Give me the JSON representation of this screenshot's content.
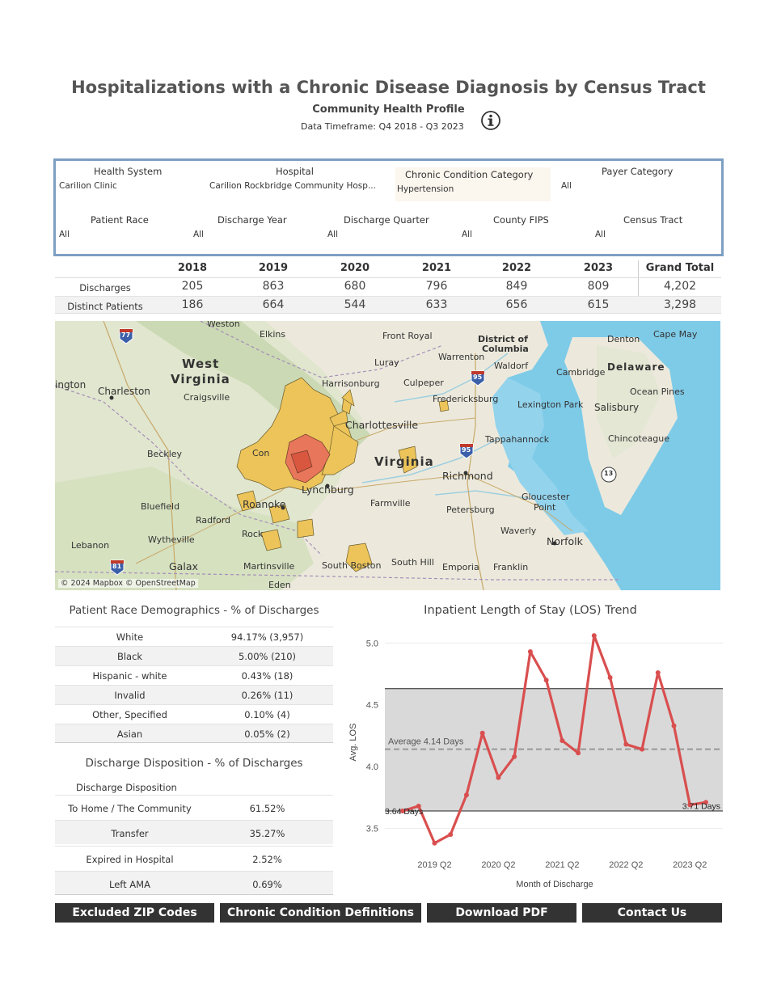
{
  "title": "Hospitalizations with a Chronic Disease Diagnosis by Census Tract",
  "subtitle": "Community Health Profile",
  "timeframe": "Data Timeframe: Q4 2018 - Q3 2023",
  "info_icon": "info-icon",
  "filters": {
    "health_system": {
      "label": "Health System",
      "value": "Carilion Clinic"
    },
    "hospital": {
      "label": "Hospital",
      "value": "Carilion Rockbridge Community Hosp..."
    },
    "chronic": {
      "label": "Chronic Condition Category",
      "value": "Hypertension"
    },
    "payer": {
      "label": "Payer Category",
      "value": "All"
    },
    "race": {
      "label": "Patient Race",
      "value": "All"
    },
    "year": {
      "label": "Discharge Year",
      "value": "All"
    },
    "quarter": {
      "label": "Discharge Quarter",
      "value": "All"
    },
    "county": {
      "label": "County FIPS",
      "value": "All"
    },
    "tract": {
      "label": "Census Tract",
      "value": "All"
    }
  },
  "summary": {
    "headers": [
      "2018",
      "2019",
      "2020",
      "2021",
      "2022",
      "2023",
      "Grand Total"
    ],
    "rows": [
      {
        "label": "Discharges",
        "values": [
          "205",
          "863",
          "680",
          "796",
          "849",
          "809",
          "4,202"
        ]
      },
      {
        "label": "Distinct Patients",
        "values": [
          "186",
          "664",
          "544",
          "633",
          "656",
          "615",
          "3,298"
        ]
      }
    ]
  },
  "map": {
    "attribution": "© 2024 Mapbox © OpenStreetMap",
    "labels": {
      "weston": "Weston",
      "elkins": "Elkins",
      "front_royal": "Front Royal",
      "dc": "District of",
      "dc2": "Columbia",
      "denton": "Denton",
      "cape_may": "Cape May",
      "west": "West",
      "virginia_wv": "Virginia",
      "warrenton": "Warrenton",
      "luray": "Luray",
      "waldorf": "Waldorf",
      "delaware": "Delaware",
      "cambridge": "Cambridge",
      "ington": "ington",
      "charleston": "Charleston",
      "harrisonburg": "Harrisonburg",
      "culpeper": "Culpeper",
      "ocean_pines": "Ocean Pines",
      "craigsville": "Craigsville",
      "fredericksburg": "Fredericksburg",
      "lexington_park": "Lexington Park",
      "salisbury": "Salisbury",
      "charlottesville": "Charlottesville",
      "tappahannock": "Tappahannock",
      "chincoteague": "Chincoteague",
      "beckley": "Beckley",
      "virginia": "Virginia",
      "richmond": "Richmond",
      "lynchburg": "Lynchburg",
      "bluefield": "Bluefield",
      "roanoke": "Roanoke",
      "farmville": "Farmville",
      "petersburg": "Petersburg",
      "gloucester": "Gloucester",
      "point": "Point",
      "radford": "Radford",
      "waverly": "Waverly",
      "norfolk": "Norfolk",
      "wytheville": "Wytheville",
      "lebanon": "Lebanon",
      "galax": "Galax",
      "martinsville": "Martinsville",
      "south_boston": "South Boston",
      "south_hill": "South Hill",
      "emporia": "Emporia",
      "franklin": "Franklin",
      "eden": "Eden",
      "rock": "Rock",
      "con": "Con",
      "shield_77": "77",
      "shield_95a": "95",
      "shield_95b": "95",
      "shield_13": "13",
      "shield_81": "81"
    }
  },
  "race": {
    "title": "Patient Race Demographics - % of Discharges",
    "rows": [
      {
        "name": "White",
        "value": "94.17% (3,957)"
      },
      {
        "name": "Black",
        "value": "5.00% (210)"
      },
      {
        "name": "Hispanic - white",
        "value": "0.43% (18)"
      },
      {
        "name": "Invalid",
        "value": "0.26% (11)"
      },
      {
        "name": "Other, Specified",
        "value": "0.10% (4)"
      },
      {
        "name": "Asian",
        "value": "0.05% (2)"
      }
    ]
  },
  "disposition": {
    "title": "Discharge Disposition - % of Discharges",
    "column_header": "Discharge Disposition",
    "rows": [
      {
        "name": "To Home / The Community",
        "value": "61.52%"
      },
      {
        "name": "Transfer",
        "value": "35.27%"
      },
      {
        "name": "Expired in Hospital",
        "value": "2.52%"
      },
      {
        "name": "Left AMA",
        "value": "0.69%"
      }
    ]
  },
  "chart_data": {
    "type": "line",
    "title": "Inpatient Length of Stay (LOS) Trend",
    "xlabel": "Month of Discharge",
    "ylabel": "Avg. LOS",
    "ylim": [
      3.3,
      5.1
    ],
    "yticks": [
      "3.5",
      "4.0",
      "4.5",
      "5.0"
    ],
    "xtick_labels": [
      "2019 Q2",
      "2020 Q2",
      "2021 Q2",
      "2022 Q2",
      "2023 Q2"
    ],
    "x": [
      "2018 Q4",
      "2019 Q1",
      "2019 Q2",
      "2019 Q3",
      "2019 Q4",
      "2020 Q1",
      "2020 Q2",
      "2020 Q3",
      "2020 Q4",
      "2021 Q1",
      "2021 Q2",
      "2021 Q3",
      "2021 Q4",
      "2022 Q1",
      "2022 Q2",
      "2022 Q3",
      "2022 Q4",
      "2023 Q1",
      "2023 Q2",
      "2023 Q3"
    ],
    "series": [
      {
        "name": "Avg. LOS",
        "values": [
          3.64,
          3.68,
          3.38,
          3.45,
          3.77,
          4.27,
          3.91,
          4.08,
          4.93,
          4.7,
          4.21,
          4.11,
          5.06,
          4.72,
          4.18,
          4.14,
          4.76,
          4.33,
          3.69,
          3.71
        ]
      }
    ],
    "average": 4.14,
    "average_label": "Average 4.14 Days",
    "band": [
      3.64,
      4.63
    ],
    "start_label": "3.64 Days",
    "end_label": "3.71 Days",
    "line_color": "#d94f4f"
  },
  "buttons": {
    "excluded_zip": "Excluded ZIP Codes",
    "definitions": "Chronic Condition Definitions",
    "download": "Download PDF",
    "contact": "Contact Us"
  }
}
